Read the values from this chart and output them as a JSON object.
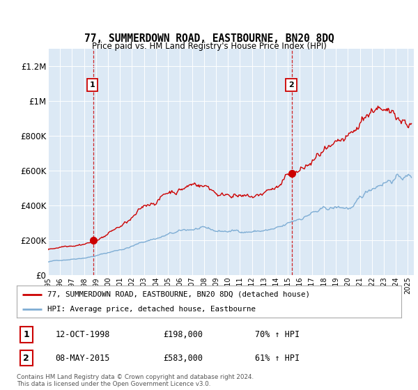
{
  "title": "77, SUMMERDOWN ROAD, EASTBOURNE, BN20 8DQ",
  "subtitle": "Price paid vs. HM Land Registry's House Price Index (HPI)",
  "ylabel_ticks": [
    "£0",
    "£200K",
    "£400K",
    "£600K",
    "£800K",
    "£1M",
    "£1.2M"
  ],
  "ytick_values": [
    0,
    200000,
    400000,
    600000,
    800000,
    1000000,
    1200000
  ],
  "ylim": [
    0,
    1300000
  ],
  "xlim_start": 1995.0,
  "xlim_end": 2025.5,
  "sale1_date": 1998.79,
  "sale1_price": 198000,
  "sale1_label": "1",
  "sale1_date_str": "12-OCT-1998",
  "sale1_price_str": "£198,000",
  "sale1_hpi_str": "70% ↑ HPI",
  "sale2_date": 2015.36,
  "sale2_price": 583000,
  "sale2_label": "2",
  "sale2_date_str": "08-MAY-2015",
  "sale2_price_str": "£583,000",
  "sale2_hpi_str": "61% ↑ HPI",
  "red_line_color": "#cc0000",
  "blue_line_color": "#7eadd4",
  "vline_color": "#cc0000",
  "background_color": "#dce9f5",
  "legend_line1": "77, SUMMERDOWN ROAD, EASTBOURNE, BN20 8DQ (detached house)",
  "legend_line2": "HPI: Average price, detached house, Eastbourne",
  "footer": "Contains HM Land Registry data © Crown copyright and database right 2024.\nThis data is licensed under the Open Government Licence v3.0."
}
